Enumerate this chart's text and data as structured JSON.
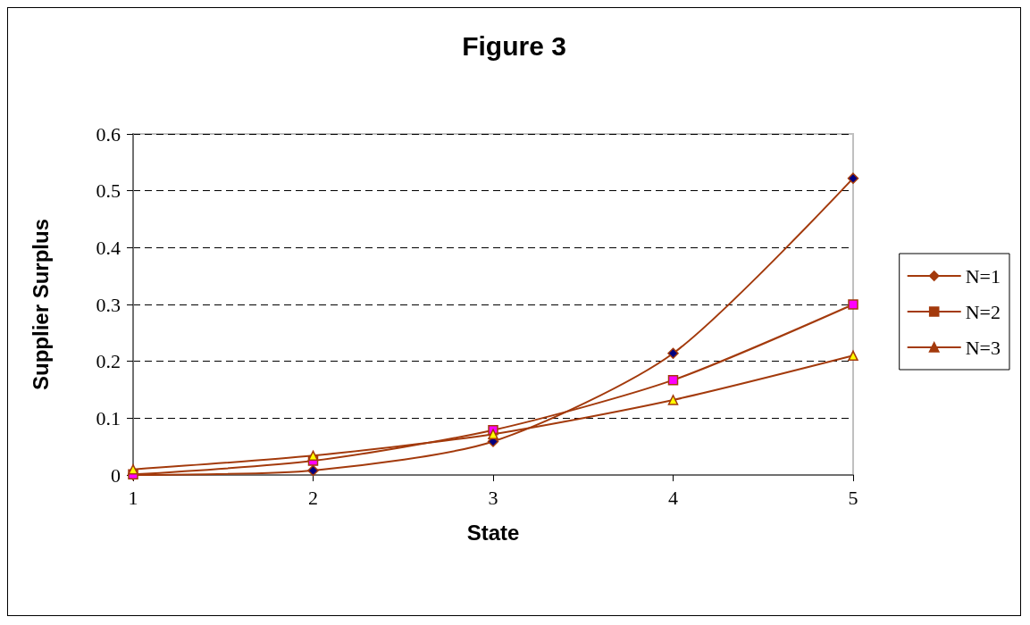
{
  "chart_data": {
    "type": "line",
    "title": "Figure 3",
    "xlabel": "State",
    "ylabel": "Supplier Surplus",
    "x": [
      1,
      2,
      3,
      4,
      5
    ],
    "xlim": [
      1,
      5
    ],
    "xticks": [
      1,
      2,
      3,
      4,
      5
    ],
    "ylim": [
      0,
      0.6
    ],
    "yticks": [
      0,
      0.1,
      0.2,
      0.3,
      0.4,
      0.5,
      0.6
    ],
    "series": [
      {
        "name": "N=1",
        "color": "#a33a0c",
        "marker": "diamond",
        "colors": [
          "#000080",
          "#000080",
          "#000080",
          "#000080",
          "#000080"
        ],
        "values": [
          0,
          0.008,
          0.059,
          0.214,
          0.522
        ]
      },
      {
        "name": "N=2",
        "color": "#a33a0c",
        "marker": "square",
        "colors": [
          "#ff00ff",
          "#ff00ff",
          "#ff00ff",
          "#ff00ff",
          "#ff00ff"
        ],
        "values": [
          0.001,
          0.025,
          0.079,
          0.167,
          0.3
        ]
      },
      {
        "name": "N=3",
        "color": "#a33a0c",
        "marker": "triangle",
        "colors": [
          "#ffff00",
          "#ffff00",
          "#ffff00",
          "#ffff00",
          "#ffff00"
        ],
        "values": [
          0.01,
          0.034,
          0.072,
          0.132,
          0.21
        ]
      }
    ],
    "grid": "y",
    "legend": "right"
  }
}
